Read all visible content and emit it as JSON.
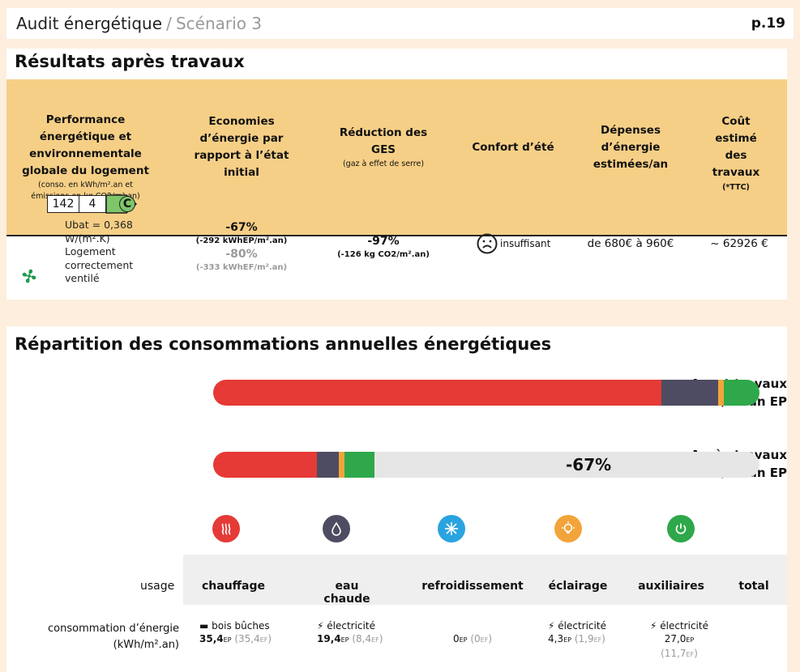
{
  "header": {
    "title": "Audit énergétique",
    "separator": "/",
    "scenario": "Scénario 3",
    "page": "p.19"
  },
  "results": {
    "title": "Résultats après travaux",
    "columns": {
      "performance": {
        "l1": "Performance",
        "l2": "énergétique et",
        "l3": "environnementale",
        "l4": "globale du logement",
        "n1": "(conso. en kWh/m².an et",
        "n2": "émissions en kg CO2/m².an)"
      },
      "savings": {
        "l1": "Economies",
        "l2": "d’énergie par",
        "l3": "rapport à l’état",
        "l4": "initial"
      },
      "ghg": {
        "l1": "Réduction des",
        "l2": "GES",
        "note": "(gaz à effet de serre)"
      },
      "comfort": {
        "l1": "Confort d’été"
      },
      "spending": {
        "l1": "Dépenses",
        "l2": "d’énergie",
        "l3": "estimées/an"
      },
      "cost": {
        "l1": "Coût",
        "l2": "estimé",
        "l3": "des",
        "l4": "travaux",
        "note": "(*TTC)"
      }
    },
    "row": {
      "label_conso": "142",
      "label_emission": "4",
      "label_class": "C",
      "ubat_l1": "Ubat = 0,368",
      "ubat_l2": "W/(m².K)",
      "vent_l1": "Logement",
      "vent_l2": "correctement",
      "vent_l3": "ventilé",
      "savings_ep_pct": "-67%",
      "savings_ep_abs": "(-292 kWhEP/m².an)",
      "savings_ef_pct": "-80%",
      "savings_ef_abs": "(-333 kWhEF/m².an)",
      "ghg_pct": "-97%",
      "ghg_abs": "(-126 kg CO2/m².an)",
      "comfort": "insuffisant",
      "spending": "de 680€ à 960€",
      "cost": "~ 62926 €"
    },
    "colors": {
      "class_c": "#7ec66a",
      "header_bg": "#f6cf86"
    }
  },
  "consumption": {
    "title": "Répartition des consommations annuelles énergétiques",
    "before_l1": "Avant travaux",
    "before_l2": "kWh/m².an EP",
    "after_l1": "Après travaux",
    "after_l2": "kWh/m².an EP",
    "after_reduction": "-67%",
    "before_fractions": {
      "chauffage": 0.82,
      "eau_chaude": 0.105,
      "eclairage": 0.01,
      "auxiliaires": 0.065
    },
    "after_fractions": {
      "chauffage": 0.19,
      "eau_chaude": 0.04,
      "eclairage": 0.01,
      "auxiliaires": 0.055
    },
    "colors": {
      "chauffage": "#e53a35",
      "eau_chaude": "#4e4c62",
      "refroidissement": "#2aa4e0",
      "eclairage": "#f2a43a",
      "auxiliaires": "#2ea84a"
    },
    "table": {
      "usage_label": "usage",
      "cols": [
        "chauffage",
        "eau chaude",
        "refroidissement",
        "éclairage",
        "auxiliaires",
        "total"
      ],
      "conso_l1": "consommation d’énergie",
      "conso_l2": "(kWh/m².an)",
      "chauffage": {
        "source": "bois bûches",
        "ep": "35,4",
        "ef": "(35,4",
        "ef_close": ")"
      },
      "eau_chaude": {
        "source": "électricité",
        "ep": "19,4",
        "ef": "(8,4",
        "ef_close": ")"
      },
      "refroidissement": {
        "ep": "0",
        "ef": "(0",
        "ef_close": ")"
      },
      "eclairage": {
        "source": "électricité",
        "ep": "4,3",
        "ef": "(1,9",
        "ef_close": ")"
      },
      "auxiliaires": {
        "source": "électricité",
        "ep": "27,0",
        "ef": "(11,7",
        "ef_close": ")"
      },
      "ep_sub": "EP",
      "ef_sub": "EF"
    }
  }
}
